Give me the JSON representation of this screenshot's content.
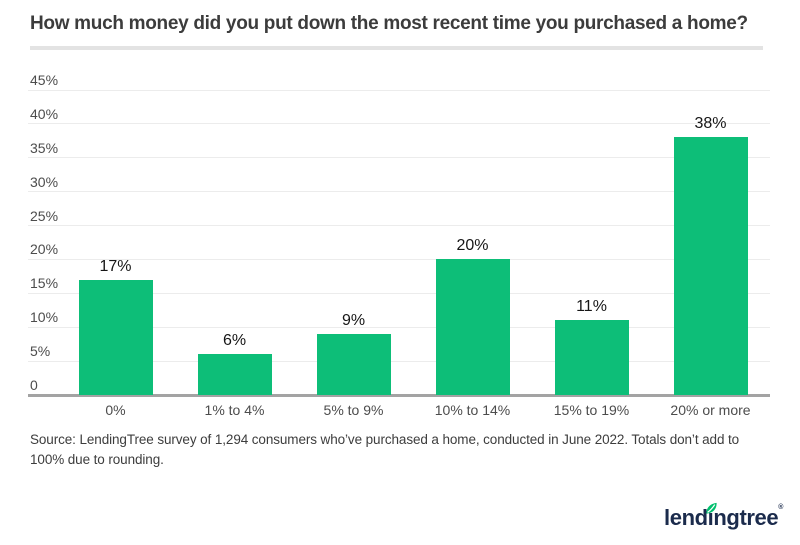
{
  "title": "How much money did you put down the most recent time you purchased a home?",
  "chart_data": {
    "type": "bar",
    "categories": [
      "0%",
      "1% to 4%",
      "5% to 9%",
      "10% to 14%",
      "15% to 19%",
      "20% or more"
    ],
    "values": [
      17,
      6,
      9,
      20,
      11,
      38
    ],
    "data_labels": [
      "17%",
      "6%",
      "9%",
      "20%",
      "11%",
      "38%"
    ],
    "title": "How much money did you put down the most recent time you purchased a home?",
    "xlabel": "",
    "ylabel": "",
    "ylim": [
      0,
      45
    ],
    "yticks": [
      45,
      40,
      35,
      30,
      25,
      20,
      15,
      10,
      5,
      0
    ],
    "ytick_labels": [
      "45%",
      "40%",
      "35%",
      "30%",
      "25%",
      "20%",
      "15%",
      "10%",
      "5%",
      "0"
    ],
    "grid": "horizontal",
    "legend": "none",
    "bar_color": "#0dbe78"
  },
  "source_note": "Source: LendingTree survey of 1,294 consumers who’ve purchased a home, conducted in June 2022. Totals don’t add to 100% due to rounding.",
  "logo": {
    "text": "lendingtree",
    "mark": "®",
    "navy": "#1b2b4c",
    "leaf_green": "#00c06e"
  },
  "colors": {
    "bar_green": "#0dbe78",
    "gridline": "#ececec",
    "axis_baseline": "#a3a3a3",
    "title_text": "#3c3c3c",
    "tick_text": "#4c4c4c",
    "data_label_text": "#161616",
    "source_text": "#3d3d3d",
    "divider": "#e3e3e3",
    "background": "#ffffff"
  }
}
